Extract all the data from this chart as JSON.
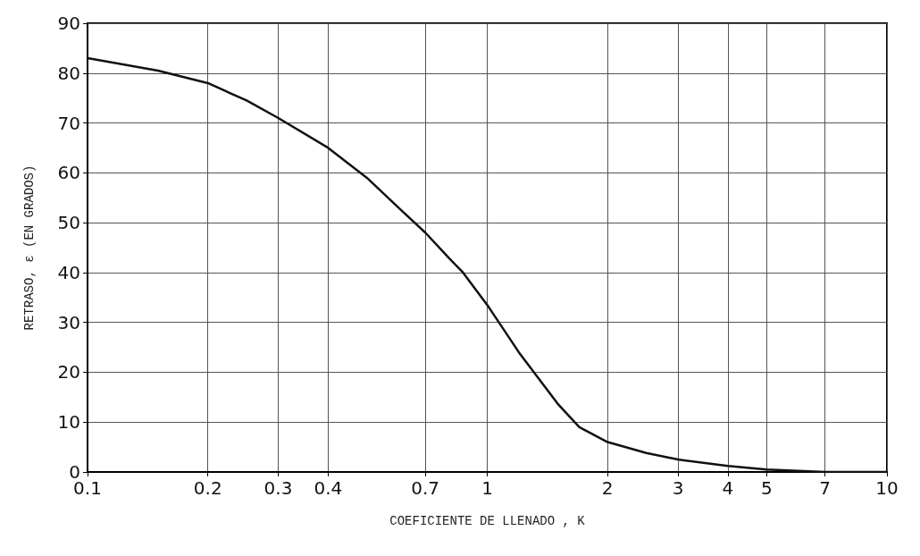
{
  "chart_data": {
    "type": "line",
    "xlabel": "COEFICIENTE DE LLENADO , K",
    "ylabel": "RETRASO, ε (EN GRADOS)",
    "log": "x",
    "xlim": [
      0.1,
      10
    ],
    "xticks": [
      0.1,
      0.2,
      0.3,
      0.4,
      0.7,
      1,
      2,
      3,
      4,
      5,
      7,
      10
    ],
    "ylim": [
      0,
      90
    ],
    "yticks": [
      0,
      10,
      20,
      30,
      40,
      50,
      60,
      70,
      80,
      90
    ],
    "grid": true,
    "marker": "none",
    "line_style": "solid",
    "series": [
      {
        "color": "#111111",
        "x": [
          0.1,
          0.15,
          0.2,
          0.25,
          0.3,
          0.4,
          0.5,
          0.6,
          0.7,
          0.8,
          0.87,
          1,
          1.2,
          1.5,
          1.7,
          2,
          2.5,
          3,
          4,
          5,
          7,
          10
        ],
        "values": [
          83,
          80.5,
          78,
          74.5,
          71,
          65,
          59,
          53,
          48,
          43,
          40,
          33.5,
          24,
          13.7,
          9,
          6,
          3.8,
          2.5,
          1.2,
          0.5,
          0,
          0
        ]
      }
    ]
  }
}
